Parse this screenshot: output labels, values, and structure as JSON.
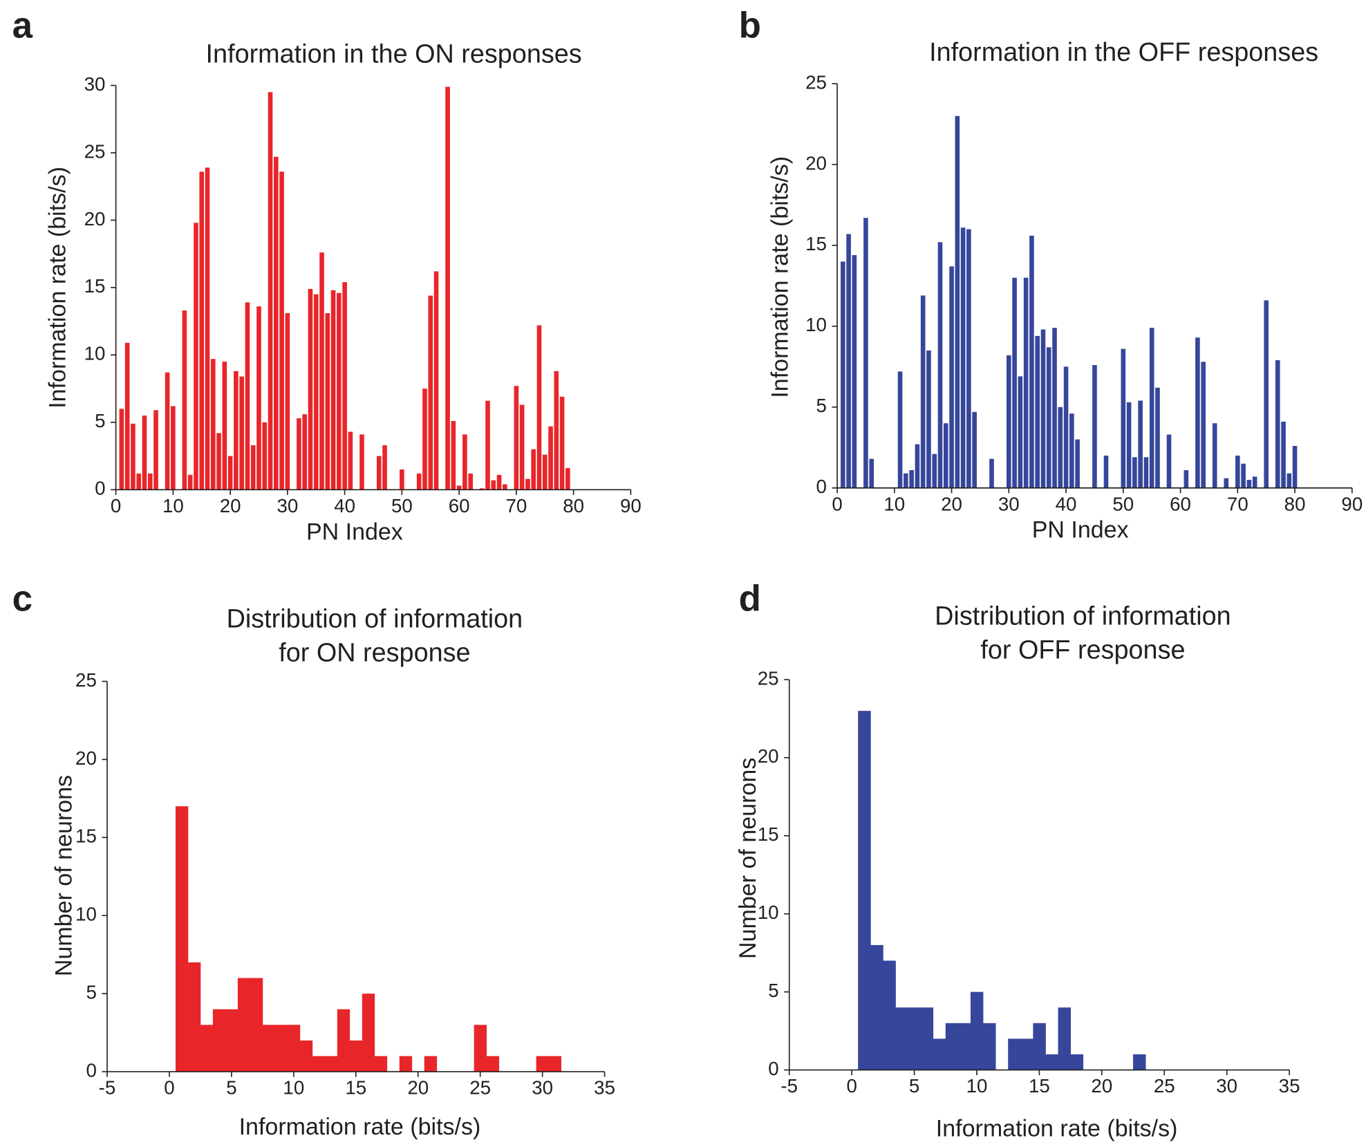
{
  "chart_data": [
    {
      "type": "bar",
      "panel_label": "a",
      "title": [
        "Information in the ON responses"
      ],
      "xlabel": "PN Index",
      "ylabel": "Information rate (bits/s)",
      "color": "#e8262a",
      "x": [
        1,
        2,
        3,
        4,
        5,
        6,
        7,
        8,
        9,
        10,
        11,
        12,
        13,
        14,
        15,
        16,
        17,
        18,
        19,
        20,
        21,
        22,
        23,
        24,
        25,
        26,
        27,
        28,
        29,
        30,
        31,
        32,
        33,
        34,
        35,
        36,
        37,
        38,
        39,
        40,
        41,
        42,
        43,
        44,
        45,
        46,
        47,
        48,
        49,
        50,
        51,
        52,
        53,
        54,
        55,
        56,
        57,
        58,
        59,
        60,
        61,
        62,
        63,
        64,
        65,
        66,
        67,
        68,
        69,
        70,
        71,
        72,
        73,
        74,
        75,
        76,
        77,
        78,
        79,
        80
      ],
      "values": [
        6.0,
        10.9,
        4.9,
        1.2,
        5.5,
        1.2,
        5.9,
        0,
        8.7,
        6.2,
        0,
        13.3,
        1.1,
        19.8,
        23.6,
        23.9,
        9.7,
        4.2,
        9.5,
        2.5,
        8.8,
        8.4,
        13.9,
        3.3,
        13.6,
        5.0,
        29.5,
        24.7,
        23.6,
        13.1,
        0,
        5.3,
        5.6,
        14.9,
        14.5,
        17.6,
        13.1,
        14.8,
        14.6,
        15.4,
        4.3,
        0,
        4.1,
        0,
        0,
        2.5,
        3.3,
        0,
        0,
        1.5,
        0,
        0,
        1.2,
        7.5,
        14.4,
        16.2,
        0,
        29.9,
        5.1,
        0.3,
        4.1,
        1.2,
        0,
        0.1,
        6.6,
        0.7,
        1.1,
        0.4,
        0,
        7.7,
        6.3,
        0.8,
        3.0,
        12.2,
        2.6,
        4.7,
        8.8,
        6.9,
        1.6,
        0
      ],
      "xlim": [
        0,
        90
      ],
      "xticks": [
        0,
        10,
        20,
        30,
        40,
        50,
        60,
        70,
        80,
        90
      ],
      "ylim": [
        0,
        30
      ],
      "yticks": [
        0,
        5,
        10,
        15,
        20,
        25,
        30
      ]
    },
    {
      "type": "bar",
      "panel_label": "b",
      "title": [
        "Information in the OFF responses"
      ],
      "xlabel": "PN Index",
      "ylabel": "Information rate (bits/s)",
      "color": "#36469b",
      "x": [
        1,
        2,
        3,
        4,
        5,
        6,
        7,
        8,
        9,
        10,
        11,
        12,
        13,
        14,
        15,
        16,
        17,
        18,
        19,
        20,
        21,
        22,
        23,
        24,
        25,
        26,
        27,
        28,
        29,
        30,
        31,
        32,
        33,
        34,
        35,
        36,
        37,
        38,
        39,
        40,
        41,
        42,
        43,
        44,
        45,
        46,
        47,
        48,
        49,
        50,
        51,
        52,
        53,
        54,
        55,
        56,
        57,
        58,
        59,
        60,
        61,
        62,
        63,
        64,
        65,
        66,
        67,
        68,
        69,
        70,
        71,
        72,
        73,
        74,
        75,
        76,
        77,
        78,
        79,
        80
      ],
      "values": [
        14.0,
        15.7,
        14.4,
        0,
        16.7,
        1.8,
        0,
        0,
        0,
        0,
        7.2,
        0.9,
        1.1,
        2.7,
        11.9,
        8.5,
        2.1,
        15.2,
        4.0,
        13.7,
        23.0,
        16.1,
        16.0,
        4.7,
        0,
        0,
        1.8,
        0,
        0,
        8.2,
        13.0,
        6.9,
        13.0,
        15.6,
        9.4,
        9.8,
        8.7,
        9.9,
        5.0,
        7.5,
        4.6,
        3.0,
        0,
        0,
        7.6,
        0,
        2.0,
        0,
        0,
        8.6,
        5.3,
        1.9,
        5.4,
        1.9,
        9.9,
        6.2,
        0,
        3.3,
        0,
        0,
        1.1,
        0,
        9.3,
        7.8,
        0,
        4.0,
        0,
        0.6,
        0,
        2.0,
        1.5,
        0.5,
        0.7,
        0,
        11.6,
        0,
        7.9,
        4.1,
        0.9,
        2.6
      ],
      "xlim": [
        0,
        90
      ],
      "xticks": [
        0,
        10,
        20,
        30,
        40,
        50,
        60,
        70,
        80,
        90
      ],
      "ylim": [
        0,
        25
      ],
      "yticks": [
        0,
        5,
        10,
        15,
        20,
        25
      ]
    },
    {
      "type": "histogram",
      "panel_label": "c",
      "title": [
        "Distribution of information",
        "for ON response"
      ],
      "xlabel": "Information rate (bits/s)",
      "ylabel": "Number of neurons",
      "color": "#e8262a",
      "bins": [
        0.5,
        1.5,
        2.5,
        3.5,
        4.5,
        5.5,
        6.5,
        7.5,
        8.5,
        9.5,
        10.5,
        11.5,
        12.5,
        13.5,
        14.5,
        15.5,
        16.5,
        17.5,
        18.5,
        19.5,
        20.5,
        21.5,
        22.5,
        23.5,
        24.5,
        25.5,
        26.5,
        27.5,
        28.5,
        29.5,
        30.5,
        31.5
      ],
      "counts": [
        17,
        7,
        3,
        4,
        4,
        6,
        6,
        3,
        3,
        3,
        2,
        1,
        1,
        4,
        2,
        5,
        1,
        0,
        1,
        0,
        1,
        0,
        0,
        0,
        3,
        1,
        0,
        0,
        0,
        1,
        1
      ],
      "xlim": [
        -5,
        35
      ],
      "xticks": [
        -5,
        0,
        5,
        10,
        15,
        20,
        25,
        30,
        35
      ],
      "ylim": [
        0,
        25
      ],
      "yticks": [
        0,
        5,
        10,
        15,
        20,
        25
      ]
    },
    {
      "type": "histogram",
      "panel_label": "d",
      "title": [
        "Distribution of information",
        "for OFF response"
      ],
      "xlabel": "Information rate (bits/s)",
      "ylabel": "Number of neurons",
      "color": "#36469b",
      "bins": [
        0.5,
        1.5,
        2.5,
        3.5,
        4.5,
        5.5,
        6.5,
        7.5,
        8.5,
        9.5,
        10.5,
        11.5,
        12.5,
        13.5,
        14.5,
        15.5,
        16.5,
        17.5,
        18.5,
        19.5,
        20.5,
        21.5,
        22.5,
        23.5
      ],
      "counts": [
        23,
        8,
        7,
        4,
        4,
        4,
        2,
        3,
        3,
        5,
        3,
        0,
        2,
        2,
        3,
        1,
        4,
        1,
        0,
        0,
        0,
        0,
        1
      ],
      "xlim": [
        -5,
        35
      ],
      "xticks": [
        -5,
        0,
        5,
        10,
        15,
        20,
        25,
        30,
        35
      ],
      "ylim": [
        0,
        25
      ],
      "yticks": [
        0,
        5,
        10,
        15,
        20,
        25
      ]
    }
  ]
}
